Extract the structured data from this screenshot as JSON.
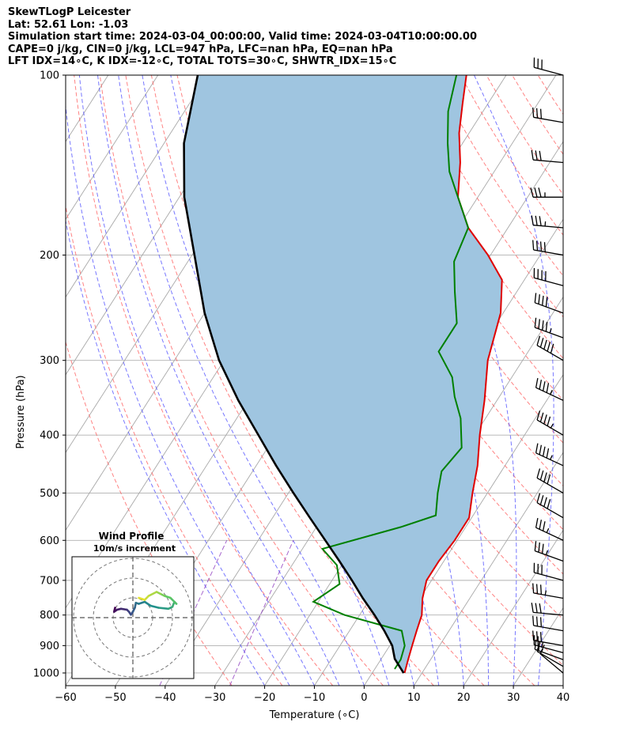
{
  "header": {
    "line1": "SkewTLogP Leicester",
    "line2": "Lat: 52.61   Lon: -1.03",
    "line3": "Simulation start time: 2024-03-04_00:00:00, Valid time: 2024-03-04T10:00:00.00",
    "line4": "CAPE=0 j/kg, CIN=0 j/kg, LCL=947 hPa, LFC=nan hPa, EQ=nan hPa",
    "line5": "LFT IDX=14∘C, K IDX=-12∘C, TOTAL TOTS=30∘C, SHWTR_IDX=15∘C"
  },
  "chart_data": {
    "type": "line",
    "title": "SkewTLogP Leicester",
    "xlabel": "Temperature (∘C)",
    "ylabel": "Pressure (hPa)",
    "xlim": [
      -60,
      40
    ],
    "ylim": [
      1050,
      100
    ],
    "x_ticks": [
      "−60",
      "−50",
      "−40",
      "−30",
      "−20",
      "−10",
      "0",
      "10",
      "20",
      "30",
      "40"
    ],
    "y_ticks": [
      "100",
      "200",
      "300",
      "400",
      "500",
      "600",
      "700",
      "800",
      "900",
      "1000"
    ],
    "colors": {
      "temperature": "#e00000",
      "dewpoint": "#008000",
      "parcel": "#000000",
      "shade": "#9fc5e0",
      "dry_adiabat": "#ff5a5a",
      "moist_adiabat": "#4a4aff",
      "mixing_ratio": "#9040c0"
    },
    "series": [
      {
        "name": "temperature",
        "points": [
          [
            6.5,
            1000
          ],
          [
            5.5,
            950
          ],
          [
            4.5,
            900
          ],
          [
            3.5,
            850
          ],
          [
            2.5,
            800
          ],
          [
            0.5,
            750
          ],
          [
            -1,
            700
          ],
          [
            -1,
            650
          ],
          [
            -0.5,
            600
          ],
          [
            -0.5,
            550
          ],
          [
            -3,
            500
          ],
          [
            -5.5,
            450
          ],
          [
            -9,
            400
          ],
          [
            -12.5,
            350
          ],
          [
            -17,
            300
          ],
          [
            -20.5,
            250
          ],
          [
            -24.5,
            220
          ],
          [
            -30.5,
            200
          ],
          [
            -38,
            180
          ],
          [
            -44,
            160
          ],
          [
            -48,
            140
          ],
          [
            -52,
            125
          ],
          [
            -55,
            112
          ],
          [
            -58,
            100
          ]
        ]
      },
      {
        "name": "dewpoint",
        "points": [
          [
            4,
            985
          ],
          [
            4,
            950
          ],
          [
            3,
            900
          ],
          [
            0.5,
            850
          ],
          [
            -13,
            800
          ],
          [
            -21,
            760
          ],
          [
            -18,
            710
          ],
          [
            -21,
            660
          ],
          [
            -26,
            620
          ],
          [
            -13,
            570
          ],
          [
            -7.5,
            545
          ],
          [
            -10,
            500
          ],
          [
            -12,
            460
          ],
          [
            -11,
            420
          ],
          [
            -15,
            375
          ],
          [
            -19,
            345
          ],
          [
            -22,
            320
          ],
          [
            -28,
            290
          ],
          [
            -28,
            260
          ],
          [
            -32.5,
            230
          ],
          [
            -36.5,
            205
          ],
          [
            -38,
            180
          ],
          [
            -44,
            160
          ],
          [
            -49,
            145
          ],
          [
            -53,
            130
          ],
          [
            -57,
            115
          ],
          [
            -60,
            100
          ]
        ]
      },
      {
        "name": "parcel",
        "points": [
          [
            6.3,
            1000
          ],
          [
            2.7,
            947
          ],
          [
            0.5,
            900
          ],
          [
            -3,
            850
          ],
          [
            -7,
            800
          ],
          [
            -11.5,
            750
          ],
          [
            -16,
            700
          ],
          [
            -21,
            650
          ],
          [
            -26.5,
            600
          ],
          [
            -32.5,
            550
          ],
          [
            -39,
            500
          ],
          [
            -46,
            450
          ],
          [
            -53.5,
            400
          ],
          [
            -62,
            350
          ],
          [
            -71,
            300
          ],
          [
            -80,
            250
          ],
          [
            -89.5,
            200
          ],
          [
            -99,
            160
          ],
          [
            -106,
            130
          ],
          [
            -112,
            100
          ]
        ]
      }
    ],
    "wind_barbs_pressure": [
      1000,
      975,
      950,
      925,
      900,
      850,
      800,
      750,
      700,
      650,
      600,
      550,
      500,
      450,
      400,
      350,
      300,
      275,
      250,
      225,
      200,
      180,
      160,
      140,
      120,
      100
    ],
    "wind_barbs": [
      [
        310,
        10
      ],
      [
        300,
        15
      ],
      [
        290,
        20
      ],
      [
        285,
        25
      ],
      [
        280,
        30
      ],
      [
        280,
        30
      ],
      [
        275,
        30
      ],
      [
        280,
        35
      ],
      [
        285,
        30
      ],
      [
        290,
        35
      ],
      [
        295,
        35
      ],
      [
        300,
        40
      ],
      [
        300,
        40
      ],
      [
        295,
        45
      ],
      [
        300,
        45
      ],
      [
        295,
        45
      ],
      [
        300,
        50
      ],
      [
        290,
        45
      ],
      [
        290,
        40
      ],
      [
        285,
        40
      ],
      [
        280,
        40
      ],
      [
        275,
        35
      ],
      [
        270,
        35
      ],
      [
        275,
        30
      ],
      [
        280,
        30
      ],
      [
        285,
        30
      ]
    ],
    "hodograph": {
      "title": "Wind Profile",
      "subtitle": "10m/s increment",
      "rings_ms": [
        10,
        20,
        30
      ],
      "points": [
        [
          -9,
          5
        ],
        [
          -9.5,
          3
        ],
        [
          -8,
          4
        ],
        [
          -6,
          4.5
        ],
        [
          -3,
          4
        ],
        [
          -2,
          3
        ],
        [
          -1,
          1.5
        ],
        [
          0,
          3
        ],
        [
          1,
          5
        ],
        [
          1.5,
          7.5
        ],
        [
          3,
          7
        ],
        [
          6,
          8
        ],
        [
          9,
          6
        ],
        [
          13,
          5
        ],
        [
          18,
          4.5
        ],
        [
          20,
          5.5
        ],
        [
          21,
          8
        ],
        [
          22,
          7
        ],
        [
          19,
          10
        ],
        [
          16,
          11
        ],
        [
          14,
          12
        ],
        [
          12,
          13
        ],
        [
          8,
          11
        ],
        [
          6,
          9
        ],
        [
          3,
          10
        ]
      ]
    }
  }
}
